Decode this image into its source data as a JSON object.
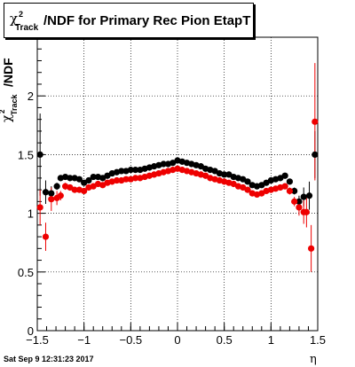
{
  "window": {
    "title_symbol": "χ",
    "title_sup": "2",
    "title_sub": "Track",
    "title_text": "/NDF for Primary Rec Pion EtapT",
    "date_stamp": "Sat Sep  9 12:31:23 2017"
  },
  "chart_data": {
    "type": "scatter",
    "title": "χ²_Track/NDF for Primary Rec Pion EtapT",
    "xlabel": "η",
    "ylabel": "χ²_Track/NDF",
    "xlim": [
      -1.5,
      1.5
    ],
    "ylim": [
      0,
      2.5
    ],
    "grid": true,
    "x_ticks": [
      -1.5,
      -1,
      -0.5,
      0,
      0.5,
      1,
      1.5
    ],
    "x_tick_labels": [
      "−1.5",
      "−1",
      "−0.5",
      "0",
      "0.5",
      "1",
      "1.5"
    ],
    "y_ticks": [
      0,
      0.5,
      1,
      1.5,
      2
    ],
    "y_tick_labels": [
      "0",
      "0.5",
      "1",
      "1.5",
      "2"
    ],
    "series": [
      {
        "color": "#000000",
        "points": [
          [
            -1.47,
            1.5,
            0.35
          ],
          [
            -1.41,
            1.18,
            0.1
          ],
          [
            -1.35,
            1.17,
            0.06
          ],
          [
            -1.29,
            1.23,
            0.03
          ],
          [
            -1.25,
            1.3,
            0.02
          ],
          [
            -1.2,
            1.31,
            0.02
          ],
          [
            -1.15,
            1.3,
            0.015
          ],
          [
            -1.1,
            1.3,
            0.015
          ],
          [
            -1.05,
            1.29,
            0.01
          ],
          [
            -1.0,
            1.26,
            0.01
          ],
          [
            -0.95,
            1.28,
            0.01
          ],
          [
            -0.9,
            1.31,
            0.01
          ],
          [
            -0.85,
            1.31,
            0.01
          ],
          [
            -0.8,
            1.3,
            0.01
          ],
          [
            -0.75,
            1.32,
            0.01
          ],
          [
            -0.7,
            1.34,
            0.01
          ],
          [
            -0.65,
            1.35,
            0.01
          ],
          [
            -0.6,
            1.36,
            0.01
          ],
          [
            -0.55,
            1.36,
            0.01
          ],
          [
            -0.5,
            1.37,
            0.01
          ],
          [
            -0.45,
            1.37,
            0.01
          ],
          [
            -0.4,
            1.37,
            0.01
          ],
          [
            -0.35,
            1.38,
            0.01
          ],
          [
            -0.3,
            1.39,
            0.01
          ],
          [
            -0.25,
            1.4,
            0.01
          ],
          [
            -0.2,
            1.41,
            0.01
          ],
          [
            -0.15,
            1.42,
            0.01
          ],
          [
            -0.1,
            1.42,
            0.01
          ],
          [
            -0.05,
            1.43,
            0.01
          ],
          [
            0.0,
            1.45,
            0.01
          ],
          [
            0.05,
            1.44,
            0.01
          ],
          [
            0.1,
            1.43,
            0.01
          ],
          [
            0.15,
            1.42,
            0.01
          ],
          [
            0.2,
            1.41,
            0.01
          ],
          [
            0.25,
            1.4,
            0.01
          ],
          [
            0.3,
            1.38,
            0.01
          ],
          [
            0.35,
            1.37,
            0.01
          ],
          [
            0.4,
            1.36,
            0.01
          ],
          [
            0.45,
            1.34,
            0.01
          ],
          [
            0.5,
            1.33,
            0.01
          ],
          [
            0.55,
            1.33,
            0.01
          ],
          [
            0.6,
            1.31,
            0.01
          ],
          [
            0.65,
            1.3,
            0.01
          ],
          [
            0.7,
            1.29,
            0.01
          ],
          [
            0.75,
            1.27,
            0.01
          ],
          [
            0.8,
            1.24,
            0.01
          ],
          [
            0.85,
            1.23,
            0.01
          ],
          [
            0.9,
            1.24,
            0.01
          ],
          [
            0.95,
            1.26,
            0.01
          ],
          [
            1.0,
            1.28,
            0.01
          ],
          [
            1.05,
            1.29,
            0.01
          ],
          [
            1.1,
            1.3,
            0.015
          ],
          [
            1.15,
            1.32,
            0.02
          ],
          [
            1.2,
            1.27,
            0.02
          ],
          [
            1.25,
            1.19,
            0.03
          ],
          [
            1.3,
            1.1,
            0.05
          ],
          [
            1.35,
            1.14,
            0.08
          ],
          [
            1.41,
            1.15,
            0.12
          ],
          [
            1.47,
            1.5,
            0.2
          ]
        ]
      },
      {
        "color": "#ee0000",
        "points": [
          [
            -1.47,
            1.05,
            0.15
          ],
          [
            -1.41,
            0.8,
            0.12
          ],
          [
            -1.35,
            1.12,
            0.1
          ],
          [
            -1.29,
            1.13,
            0.06
          ],
          [
            -1.25,
            1.15,
            0.04
          ],
          [
            -1.2,
            1.23,
            0.03
          ],
          [
            -1.15,
            1.22,
            0.02
          ],
          [
            -1.1,
            1.2,
            0.02
          ],
          [
            -1.05,
            1.2,
            0.015
          ],
          [
            -1.0,
            1.19,
            0.01
          ],
          [
            -0.95,
            1.22,
            0.01
          ],
          [
            -0.9,
            1.23,
            0.01
          ],
          [
            -0.85,
            1.25,
            0.01
          ],
          [
            -0.8,
            1.24,
            0.01
          ],
          [
            -0.75,
            1.26,
            0.01
          ],
          [
            -0.7,
            1.27,
            0.01
          ],
          [
            -0.65,
            1.28,
            0.01
          ],
          [
            -0.6,
            1.28,
            0.01
          ],
          [
            -0.55,
            1.29,
            0.01
          ],
          [
            -0.5,
            1.29,
            0.01
          ],
          [
            -0.45,
            1.3,
            0.01
          ],
          [
            -0.4,
            1.3,
            0.01
          ],
          [
            -0.35,
            1.31,
            0.01
          ],
          [
            -0.3,
            1.32,
            0.01
          ],
          [
            -0.25,
            1.33,
            0.01
          ],
          [
            -0.2,
            1.34,
            0.01
          ],
          [
            -0.15,
            1.35,
            0.01
          ],
          [
            -0.1,
            1.36,
            0.01
          ],
          [
            -0.05,
            1.37,
            0.01
          ],
          [
            0.0,
            1.38,
            0.01
          ],
          [
            0.05,
            1.37,
            0.01
          ],
          [
            0.1,
            1.36,
            0.01
          ],
          [
            0.15,
            1.35,
            0.01
          ],
          [
            0.2,
            1.34,
            0.01
          ],
          [
            0.25,
            1.33,
            0.01
          ],
          [
            0.3,
            1.32,
            0.01
          ],
          [
            0.35,
            1.3,
            0.01
          ],
          [
            0.4,
            1.29,
            0.01
          ],
          [
            0.45,
            1.28,
            0.01
          ],
          [
            0.5,
            1.27,
            0.01
          ],
          [
            0.55,
            1.26,
            0.01
          ],
          [
            0.6,
            1.25,
            0.01
          ],
          [
            0.65,
            1.23,
            0.01
          ],
          [
            0.7,
            1.22,
            0.01
          ],
          [
            0.75,
            1.2,
            0.01
          ],
          [
            0.8,
            1.17,
            0.01
          ],
          [
            0.85,
            1.16,
            0.01
          ],
          [
            0.9,
            1.17,
            0.01
          ],
          [
            0.95,
            1.19,
            0.01
          ],
          [
            1.0,
            1.2,
            0.01
          ],
          [
            1.05,
            1.21,
            0.015
          ],
          [
            1.1,
            1.22,
            0.02
          ],
          [
            1.15,
            1.23,
            0.02
          ],
          [
            1.2,
            1.19,
            0.03
          ],
          [
            1.25,
            1.1,
            0.04
          ],
          [
            1.3,
            1.05,
            0.07
          ],
          [
            1.35,
            1.01,
            0.1
          ],
          [
            1.38,
            1.01,
            0.13
          ],
          [
            1.43,
            0.7,
            0.2
          ],
          [
            1.47,
            1.78,
            0.5
          ]
        ]
      }
    ]
  }
}
